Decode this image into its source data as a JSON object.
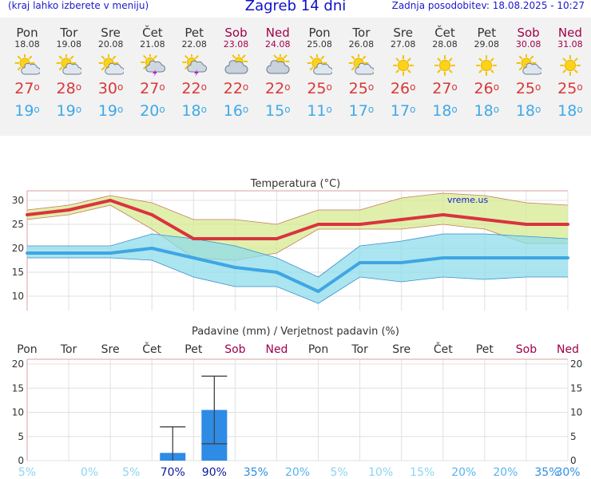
{
  "header": {
    "menu_hint": "(kraj lahko izberete v meniju)",
    "title": "Zagreb 14 dni",
    "updated": "Zadnja posodobitev: 18.08.2025 - 10:27"
  },
  "days": [
    {
      "name": "Pon",
      "date": "18.08",
      "weekend": false,
      "icon": "sun-cloud-icon",
      "max": "27",
      "min": "19"
    },
    {
      "name": "Tor",
      "date": "19.08",
      "weekend": false,
      "icon": "sun-cloud-icon",
      "max": "28",
      "min": "19"
    },
    {
      "name": "Sre",
      "date": "20.08",
      "weekend": false,
      "icon": "sun-cloud-icon",
      "max": "30",
      "min": "19"
    },
    {
      "name": "Čet",
      "date": "21.08",
      "weekend": false,
      "icon": "sun-cloud-storm-icon",
      "max": "27",
      "min": "20"
    },
    {
      "name": "Pet",
      "date": "22.08",
      "weekend": false,
      "icon": "sun-cloud-storm-icon",
      "max": "22",
      "min": "18"
    },
    {
      "name": "Sob",
      "date": "23.08",
      "weekend": true,
      "icon": "cloud-sun-icon",
      "max": "22",
      "min": "16"
    },
    {
      "name": "Ned",
      "date": "24.08",
      "weekend": true,
      "icon": "cloud-sun-icon",
      "max": "22",
      "min": "15"
    },
    {
      "name": "Pon",
      "date": "25.08",
      "weekend": false,
      "icon": "sun-cloud-icon",
      "max": "25",
      "min": "11"
    },
    {
      "name": "Tor",
      "date": "26.08",
      "weekend": false,
      "icon": "sun-cloud-icon",
      "max": "25",
      "min": "17"
    },
    {
      "name": "Sre",
      "date": "27.08",
      "weekend": false,
      "icon": "sun-icon",
      "max": "26",
      "min": "17"
    },
    {
      "name": "Čet",
      "date": "28.08",
      "weekend": false,
      "icon": "sun-icon",
      "max": "27",
      "min": "18"
    },
    {
      "name": "Pet",
      "date": "29.08",
      "weekend": false,
      "icon": "sun-icon",
      "max": "26",
      "min": "18"
    },
    {
      "name": "Sob",
      "date": "30.08",
      "weekend": true,
      "icon": "sun-cloud-icon",
      "max": "25",
      "min": "18"
    },
    {
      "name": "Ned",
      "date": "31.08",
      "weekend": true,
      "icon": "sun-icon",
      "max": "25",
      "min": "18"
    }
  ],
  "colors": {
    "max_line": "#d9343f",
    "min_line": "#3ea6e4",
    "max_band": "#d6eb90",
    "min_band": "#8fdcea",
    "bar": "#2e8be6",
    "weekend": "#a0004a",
    "prob_low": "#8cd4f2",
    "prob_high": "#0a1a9a"
  },
  "chart_data": [
    {
      "type": "line",
      "title": "Temperatura (°C)",
      "watermark": "vreme.us",
      "categories": [
        "Pon",
        "Tor",
        "Sre",
        "Čet",
        "Pet",
        "Sob",
        "Ned",
        "Pon",
        "Tor",
        "Sre",
        "Čet",
        "Pet",
        "Sob",
        "Ned"
      ],
      "ylim": [
        7,
        32
      ],
      "yticks": [
        10,
        15,
        20,
        25,
        30
      ],
      "grid": true,
      "series": [
        {
          "key": "max",
          "values": [
            27,
            28,
            30,
            27,
            22,
            22,
            22,
            25,
            25,
            26,
            27,
            26,
            25,
            25
          ],
          "band_low": [
            26,
            27,
            29,
            24,
            18,
            17.5,
            19,
            24,
            24,
            24,
            25,
            24,
            21,
            21
          ],
          "band_high": [
            28,
            29,
            31,
            29.5,
            26,
            26,
            25,
            28,
            28,
            30.5,
            31.5,
            31,
            29.5,
            29
          ]
        },
        {
          "key": "min",
          "values": [
            19,
            19,
            19,
            20,
            18,
            16,
            15,
            11,
            17,
            17,
            18,
            18,
            18,
            18
          ],
          "band_low": [
            18,
            18,
            18,
            17.5,
            14,
            12,
            12,
            8.5,
            14,
            13,
            14,
            13.5,
            14,
            14
          ],
          "band_high": [
            20.5,
            20.5,
            20.5,
            23,
            22,
            20.5,
            18,
            14,
            20.5,
            21.5,
            23,
            23,
            22.5,
            22
          ]
        }
      ]
    },
    {
      "type": "bar",
      "title": "Padavine (mm) / Verjetnost padavin (%)",
      "categories": [
        "Pon",
        "Tor",
        "Sre",
        "Čet",
        "Pet",
        "Sob",
        "Ned",
        "Pon",
        "Tor",
        "Sre",
        "Čet",
        "Pet",
        "Sob",
        "Ned"
      ],
      "values": [
        0,
        0,
        0,
        1.6,
        10.5,
        0,
        0,
        0,
        0,
        0,
        0,
        0,
        0,
        0
      ],
      "err_low": [
        0,
        0,
        0,
        0,
        3.5,
        0,
        0,
        0,
        0,
        0,
        0,
        0,
        0,
        0
      ],
      "err_high": [
        0,
        0,
        0,
        7,
        17.5,
        0,
        0,
        0,
        0,
        0,
        0,
        0,
        0,
        0
      ],
      "probability": [
        "5%",
        "0%",
        "5%",
        "70%",
        "90%",
        "35%",
        "20%",
        "5%",
        "10%",
        "15%",
        "20%",
        "20%",
        "35%",
        "30%"
      ],
      "ylim": [
        0,
        21
      ],
      "yticks": [
        0,
        5,
        10,
        15,
        20
      ],
      "grid": true
    }
  ]
}
